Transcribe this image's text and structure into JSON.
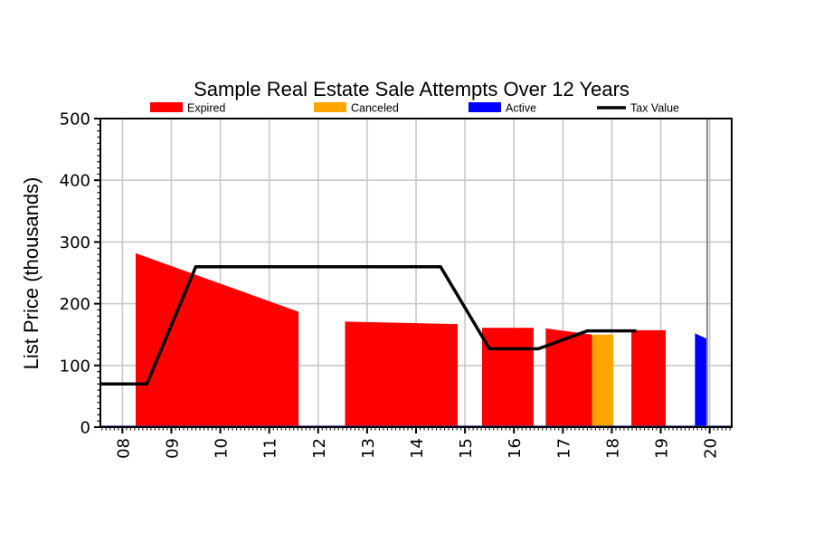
{
  "chart_data": {
    "type": "area",
    "title": "Sample Real Estate Sale Attempts Over 12 Years",
    "xlabel": "",
    "ylabel": "List Price (thousands)",
    "xlim": [
      2007.55,
      2020.45
    ],
    "ylim": [
      0,
      500
    ],
    "y_ticks": [
      0,
      100,
      200,
      300,
      400,
      500
    ],
    "x_ticks": [
      {
        "value": 2008,
        "label": "08"
      },
      {
        "value": 2009,
        "label": "09"
      },
      {
        "value": 2010,
        "label": "10"
      },
      {
        "value": 2011,
        "label": "11"
      },
      {
        "value": 2012,
        "label": "12"
      },
      {
        "value": 2013,
        "label": "13"
      },
      {
        "value": 2014,
        "label": "14"
      },
      {
        "value": 2015,
        "label": "15"
      },
      {
        "value": 2016,
        "label": "16"
      },
      {
        "value": 2017,
        "label": "17"
      },
      {
        "value": 2018,
        "label": "18"
      },
      {
        "value": 2019,
        "label": "19"
      },
      {
        "value": 2020,
        "label": "20"
      }
    ],
    "grid": true,
    "legend_position": "top",
    "colors": {
      "Expired": "#ff0000",
      "Canceled": "#ffa500",
      "Active": "#0000ff",
      "Tax Value": "#000000"
    },
    "legend": [
      {
        "name": "Expired",
        "kind": "patch"
      },
      {
        "name": "Canceled",
        "kind": "patch"
      },
      {
        "name": "Active",
        "kind": "patch"
      },
      {
        "name": "Tax Value",
        "kind": "line"
      }
    ],
    "listings": [
      {
        "status": "Expired",
        "start": 2008.27,
        "end": 2011.6,
        "start_price": 282,
        "end_price": 187
      },
      {
        "status": "Expired",
        "start": 2012.55,
        "end": 2014.85,
        "start_price": 171,
        "end_price": 167
      },
      {
        "status": "Expired",
        "start": 2015.35,
        "end": 2016.4,
        "start_price": 161,
        "end_price": 161
      },
      {
        "status": "Expired",
        "start": 2016.65,
        "end": 2017.6,
        "start_price": 160,
        "end_price": 150
      },
      {
        "status": "Canceled",
        "start": 2017.6,
        "end": 2018.03,
        "start_price": 150,
        "end_price": 150
      },
      {
        "status": "Expired",
        "start": 2018.4,
        "end": 2019.1,
        "start_price": 157,
        "end_price": 157
      },
      {
        "status": "Active",
        "start": 2019.7,
        "end": 2019.95,
        "start_price": 152,
        "end_price": 143
      }
    ],
    "tax_value": {
      "x": [
        2007.55,
        2008.5,
        2009.5,
        2014.5,
        2015.5,
        2016.5,
        2017.5,
        2018.5
      ],
      "y": [
        70,
        70,
        260,
        260,
        127,
        127,
        156,
        156
      ]
    },
    "current_marker_x": 2019.95
  }
}
